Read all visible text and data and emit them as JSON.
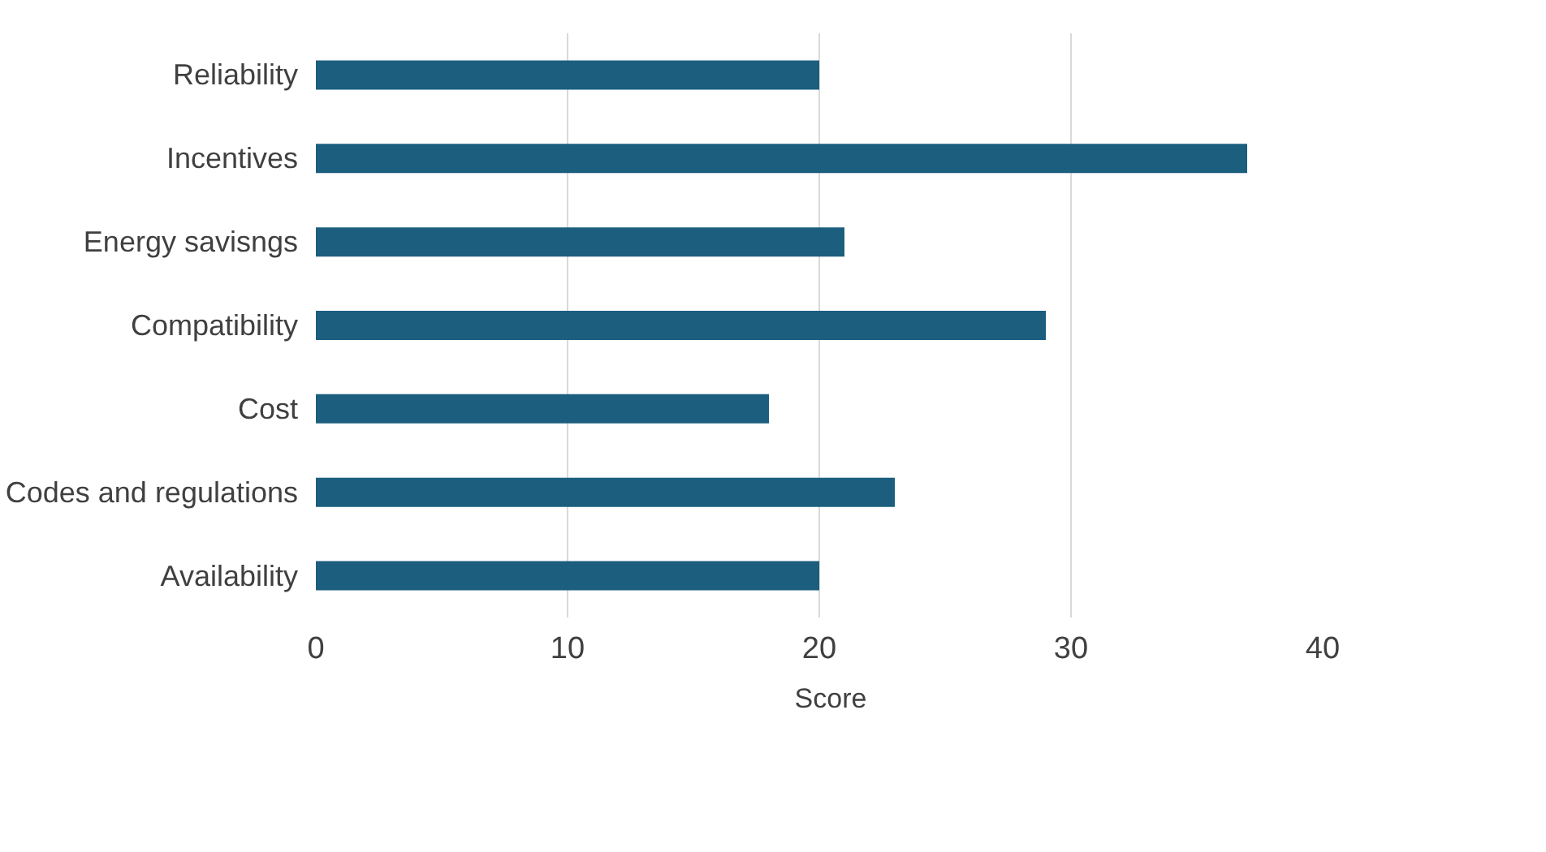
{
  "chart_data": {
    "type": "bar",
    "orientation": "horizontal",
    "categories": [
      "Reliability",
      "Incentives",
      "Energy savisngs",
      "Compatibility",
      "Cost",
      "Codes and regulations",
      "Availability"
    ],
    "series": [
      {
        "name": "Score",
        "color": "#1b5e7e",
        "values": [
          20,
          37,
          21,
          29,
          18,
          23,
          20
        ]
      }
    ],
    "xlim": [
      0,
      40
    ],
    "xticks": [
      0,
      10,
      20,
      30,
      40
    ],
    "grid": "x",
    "legend": "bottom"
  }
}
